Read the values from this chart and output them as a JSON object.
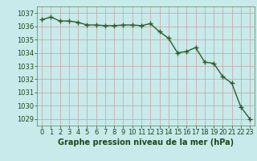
{
  "x": [
    0,
    1,
    2,
    3,
    4,
    5,
    6,
    7,
    8,
    9,
    10,
    11,
    12,
    13,
    14,
    15,
    16,
    17,
    18,
    19,
    20,
    21,
    22,
    23
  ],
  "y": [
    1036.5,
    1036.7,
    1036.4,
    1036.4,
    1036.3,
    1036.1,
    1036.1,
    1036.05,
    1036.05,
    1036.1,
    1036.1,
    1036.05,
    1036.2,
    1035.6,
    1035.1,
    1034.0,
    1034.1,
    1034.4,
    1033.3,
    1033.2,
    1032.2,
    1031.7,
    1029.9,
    1029.0
  ],
  "line_color": "#2a5e2a",
  "marker": "+",
  "marker_size": 4,
  "marker_linewidth": 1.0,
  "line_width": 1.0,
  "background_color": "#c8eaea",
  "grid_color": "#c8a0a0",
  "xlabel": "Graphe pression niveau de la mer (hPa)",
  "xlabel_fontsize": 7,
  "xlabel_color": "#1a4a1a",
  "ylabel_color": "#1a4a1a",
  "tick_color": "#1a4a1a",
  "ylim": [
    1028.5,
    1037.5
  ],
  "xlim": [
    -0.5,
    23.5
  ],
  "yticks": [
    1029,
    1030,
    1031,
    1032,
    1033,
    1034,
    1035,
    1036,
    1037
  ],
  "xticks": [
    0,
    1,
    2,
    3,
    4,
    5,
    6,
    7,
    8,
    9,
    10,
    11,
    12,
    13,
    14,
    15,
    16,
    17,
    18,
    19,
    20,
    21,
    22,
    23
  ],
  "tick_fontsize": 6,
  "figsize": [
    3.2,
    2.0
  ],
  "dpi": 100
}
